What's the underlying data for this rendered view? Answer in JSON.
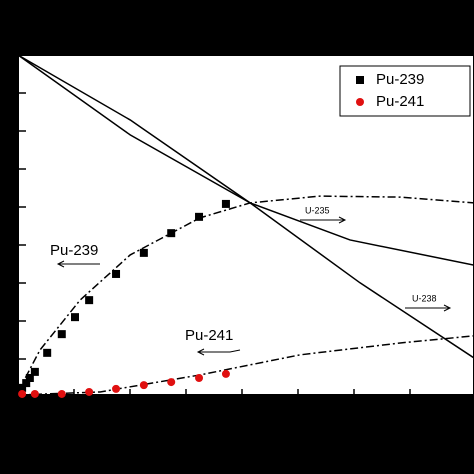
{
  "chart_data": {
    "type": "scatter",
    "xlim": [
      0,
      100
    ],
    "ylim": [
      0,
      100
    ],
    "legend": "upper right",
    "series": [
      {
        "name": "Pu-239",
        "color": "#000000",
        "marker": "square",
        "x": [
          0.9,
          1.8,
          2.6,
          3.7,
          6.4,
          9.6,
          12.5,
          15.6,
          21.5,
          27.6,
          33.6,
          39.7,
          45.6
        ],
        "values": [
          2.1,
          3.5,
          5.0,
          6.8,
          12.4,
          17.9,
          22.9,
          27.9,
          35.6,
          41.8,
          47.6,
          52.4,
          56.2
        ]
      },
      {
        "name": "Pu-241",
        "color": "#e01010",
        "marker": "circle",
        "x": [
          0.9,
          3.7,
          9.6,
          15.6,
          21.5,
          27.6,
          33.6,
          39.7,
          45.6
        ],
        "values": [
          0.3,
          0.3,
          0.3,
          0.9,
          1.8,
          2.9,
          3.8,
          5.0,
          6.2
        ]
      }
    ],
    "curves": [
      {
        "style": "solid",
        "x": [
          0,
          24.6,
          50.9,
          75,
          100
        ],
        "values": [
          100,
          76.5,
          56.5,
          33,
          10.9
        ]
      },
      {
        "style": "solid",
        "x": [
          0,
          24.6,
          50.9,
          72.8,
          100
        ],
        "values": [
          100,
          80.9,
          56.5,
          45.6,
          38.2
        ]
      },
      {
        "style": "dashdot",
        "x": [
          0,
          4.8,
          13.6,
          24.6,
          39.9,
          50.9,
          66.2,
          83.8,
          100
        ],
        "values": [
          0.9,
          13.2,
          27.9,
          41.2,
          52.1,
          56.5,
          58.5,
          58.2,
          56.5
        ]
      },
      {
        "style": "dashdot",
        "x": [
          0,
          18,
          39.9,
          61.8,
          83.8,
          100
        ],
        "values": [
          0,
          0.9,
          5.9,
          11.8,
          15.3,
          17.4
        ]
      }
    ],
    "annotations": [
      "Pu-239",
      "Pu-241",
      "U-235",
      "U-238"
    ]
  }
}
